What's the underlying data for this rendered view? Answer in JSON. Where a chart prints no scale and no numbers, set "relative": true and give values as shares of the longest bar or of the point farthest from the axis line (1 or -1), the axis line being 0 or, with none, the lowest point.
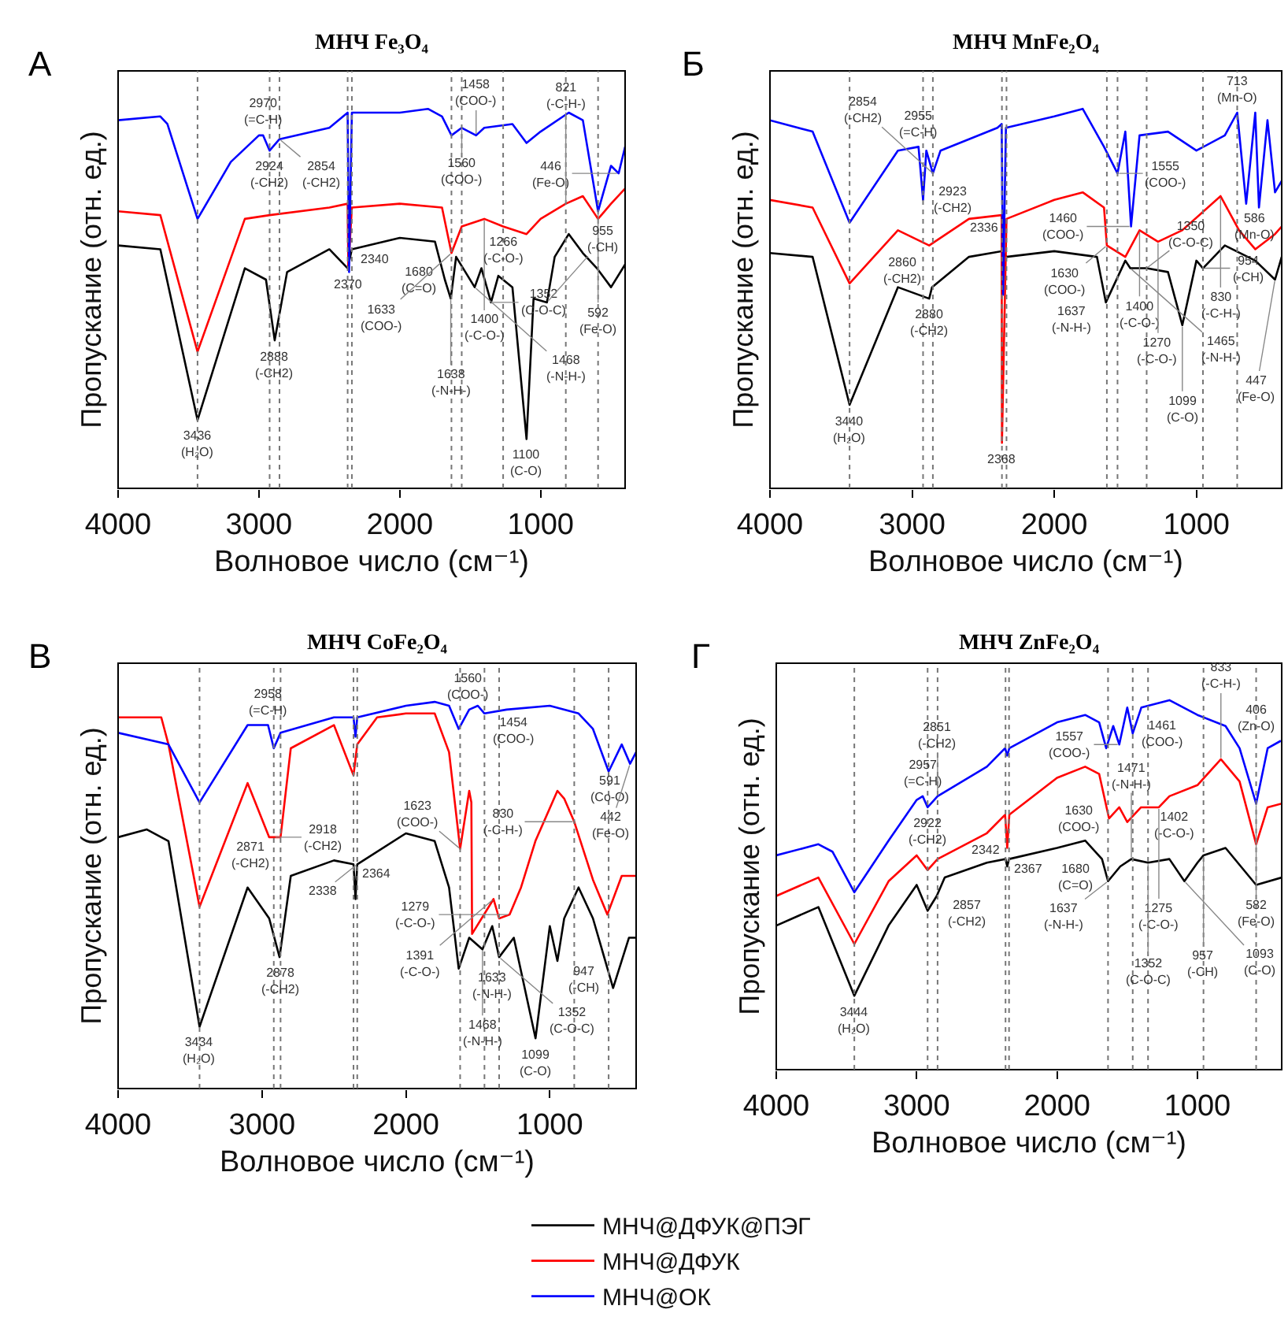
{
  "chart_data": [
    {
      "type": "line",
      "title": "МНЧ Fe₃O₄",
      "xlabel": "Волновое число (см⁻¹)",
      "ylabel": "Пропускание (отн. ед.)",
      "relative": true,
      "xlim": [
        4000,
        400
      ],
      "xticks": [
        4000,
        3000,
        2000,
        1000
      ],
      "tick_labels": "x",
      "grid": false,
      "legend": false,
      "series": [
        {
          "color": "#000000",
          "x": [
            4000,
            3700,
            3436,
            3100,
            2950,
            2888,
            2800,
            2500,
            2370,
            2340,
            2000,
            1750,
            1680,
            1638,
            1600,
            1468,
            1420,
            1352,
            1300,
            1200,
            1100,
            1050,
            955,
            900,
            800,
            700,
            600,
            500,
            400
          ],
          "values": [
            0.64,
            0.63,
            0.18,
            0.58,
            0.55,
            0.39,
            0.57,
            0.63,
            0.58,
            0.63,
            0.66,
            0.65,
            0.55,
            0.5,
            0.61,
            0.53,
            0.58,
            0.49,
            0.56,
            0.53,
            0.13,
            0.5,
            0.49,
            0.61,
            0.67,
            0.62,
            0.58,
            0.53,
            0.59
          ]
        },
        {
          "color": "#ff0000",
          "x": [
            4000,
            3700,
            3436,
            3100,
            2924,
            2500,
            2370,
            2365,
            2340,
            2000,
            1700,
            1633,
            1560,
            1400,
            1266,
            1100,
            1000,
            821,
            700,
            592,
            500,
            400
          ],
          "values": [
            0.73,
            0.72,
            0.36,
            0.71,
            0.72,
            0.74,
            0.75,
            0.58,
            0.74,
            0.75,
            0.74,
            0.62,
            0.69,
            0.71,
            0.69,
            0.67,
            0.71,
            0.75,
            0.77,
            0.71,
            0.75,
            0.79
          ]
        },
        {
          "color": "#0000ff",
          "x": [
            4000,
            3700,
            3650,
            3436,
            3200,
            3000,
            2970,
            2924,
            2854,
            2500,
            2370,
            2360,
            2340,
            2000,
            1800,
            1700,
            1633,
            1560,
            1458,
            1400,
            1200,
            1100,
            1000,
            800,
            700,
            592,
            500,
            446,
            400
          ],
          "values": [
            0.97,
            0.98,
            0.96,
            0.71,
            0.86,
            0.93,
            0.93,
            0.89,
            0.92,
            0.95,
            0.99,
            0.57,
            0.99,
            0.99,
            1.0,
            0.98,
            0.93,
            0.95,
            0.93,
            0.95,
            0.96,
            0.91,
            0.94,
            0.99,
            0.97,
            0.73,
            0.85,
            0.83,
            0.9
          ]
        }
      ],
      "ref_lines": [
        {
          "axis": "x",
          "value": 3436,
          "color": "#777777",
          "line_style": "dotted"
        },
        {
          "axis": "x",
          "value": 2924,
          "color": "#777777",
          "line_style": "dotted"
        },
        {
          "axis": "x",
          "value": 2854,
          "color": "#777777",
          "line_style": "dotted"
        },
        {
          "axis": "x",
          "value": 2370,
          "color": "#777777",
          "line_style": "dotted"
        },
        {
          "axis": "x",
          "value": 2340,
          "color": "#777777",
          "line_style": "dotted"
        },
        {
          "axis": "x",
          "value": 1633,
          "color": "#777777",
          "line_style": "dotted"
        },
        {
          "axis": "x",
          "value": 1560,
          "color": "#777777",
          "line_style": "dotted"
        },
        {
          "axis": "x",
          "value": 1266,
          "color": "#777777",
          "line_style": "dotted"
        },
        {
          "axis": "x",
          "value": 821,
          "color": "#777777",
          "line_style": "dotted"
        },
        {
          "axis": "x",
          "value": 592,
          "color": "#777777",
          "line_style": "dotted"
        }
      ],
      "annotations": [
        "А",
        {
          "text": "3436\n(H₂O)",
          "x": 3436,
          "y": 0.18
        },
        {
          "text": "1100\n(C-O)",
          "x": 1100,
          "y": 0.13
        },
        {
          "text": "2888\n(-CH2)",
          "x": 2888,
          "y": 0.39
        },
        {
          "text": "2970\n(=C-H)",
          "x": 2970,
          "y": 0.93
        },
        {
          "text": "2924\n(-CH2)",
          "x": 2924,
          "y": 0.89
        },
        {
          "text": "2854\n(-CH2)",
          "x": 2854,
          "y": 0.92
        },
        {
          "text": "2370",
          "x": 2370,
          "y": 0.58
        },
        {
          "text": "2340",
          "x": 2340,
          "y": 0.63
        },
        {
          "text": "1560\n(COO-)",
          "x": 1560,
          "y": 0.95
        },
        {
          "text": "1458\n(COO-)",
          "x": 1458,
          "y": 0.93
        },
        {
          "text": "446\n(Fe-O)",
          "x": 446,
          "y": 0.83
        },
        {
          "text": "592\n(Fe-O)",
          "x": 592,
          "y": 0.73
        },
        {
          "text": "821\n(-C-H-)",
          "x": 821,
          "y": 0.75
        },
        {
          "text": "1400\n(-C-O-)",
          "x": 1400,
          "y": 0.71
        },
        {
          "text": "1266\n(-C-O-)",
          "x": 1266,
          "y": 0.69
        },
        {
          "text": "1680\n(C=O)",
          "x": 1680,
          "y": 0.55
        },
        {
          "text": "1633\n(COO-)",
          "x": 1633,
          "y": 0.62
        },
        {
          "text": "1638\n(-N-H-)",
          "x": 1638,
          "y": 0.5
        },
        {
          "text": "1468\n(-N-H-)",
          "x": 1468,
          "y": 0.53
        },
        {
          "text": "1352\n(C-O-C)",
          "x": 1352,
          "y": 0.49
        },
        {
          "text": "955\n(-CH)",
          "x": 955,
          "y": 0.49
        }
      ]
    },
    {
      "type": "line",
      "title": "МНЧ MnFe₂O₄",
      "xlabel": "Волновое число (см⁻¹)",
      "ylabel": "Пропускание (отн. ед.)",
      "relative": true,
      "xlim": [
        4000,
        400
      ],
      "xticks": [
        4000,
        3000,
        2000,
        1000
      ],
      "tick_labels": "x",
      "grid": false,
      "legend": false,
      "series": [
        {
          "color": "#000000",
          "x": [
            4000,
            3700,
            3440,
            3100,
            2880,
            2860,
            2600,
            2368,
            2336,
            2000,
            1700,
            1637,
            1500,
            1465,
            1350,
            1200,
            1099,
            1000,
            954,
            800,
            586,
            447,
            400
          ],
          "values": [
            0.62,
            0.61,
            0.22,
            0.53,
            0.5,
            0.53,
            0.61,
            0.625,
            0.61,
            0.625,
            0.61,
            0.49,
            0.6,
            0.58,
            0.58,
            0.57,
            0.43,
            0.6,
            0.58,
            0.64,
            0.6,
            0.55,
            0.61
          ]
        },
        {
          "color": "#ff0000",
          "x": [
            4000,
            3700,
            3440,
            3100,
            2880,
            2600,
            2370,
            2368,
            2336,
            2000,
            1800,
            1650,
            1630,
            1500,
            1400,
            1270,
            1100,
            830,
            700,
            586,
            447,
            400
          ],
          "values": [
            0.76,
            0.74,
            0.54,
            0.68,
            0.64,
            0.71,
            0.72,
            0.12,
            0.71,
            0.76,
            0.78,
            0.74,
            0.64,
            0.61,
            0.68,
            0.65,
            0.68,
            0.77,
            0.68,
            0.63,
            0.67,
            0.69
          ]
        },
        {
          "color": "#0000ff",
          "x": [
            4000,
            3700,
            3440,
            3100,
            2955,
            2923,
            2900,
            2854,
            2800,
            2400,
            2370,
            2360,
            2340,
            2000,
            1800,
            1650,
            1555,
            1500,
            1460,
            1400,
            1200,
            1000,
            800,
            713,
            650,
            586,
            560,
            500,
            447,
            400
          ],
          "values": [
            0.97,
            0.94,
            0.7,
            0.89,
            0.9,
            0.76,
            0.89,
            0.83,
            0.89,
            0.95,
            0.96,
            0.51,
            0.95,
            0.98,
            1.0,
            0.9,
            0.83,
            0.94,
            0.69,
            0.93,
            0.94,
            0.89,
            0.93,
            0.99,
            0.75,
            0.99,
            0.74,
            0.97,
            0.78,
            0.81
          ]
        }
      ],
      "ref_lines": [
        {
          "axis": "x",
          "value": 3440,
          "color": "#777777",
          "line_style": "dotted"
        },
        {
          "axis": "x",
          "value": 2923,
          "color": "#777777",
          "line_style": "dotted"
        },
        {
          "axis": "x",
          "value": 2854,
          "color": "#777777",
          "line_style": "dotted"
        },
        {
          "axis": "x",
          "value": 2368,
          "color": "#777777",
          "line_style": "dotted"
        },
        {
          "axis": "x",
          "value": 2336,
          "color": "#777777",
          "line_style": "dotted"
        },
        {
          "axis": "x",
          "value": 1630,
          "color": "#777777",
          "line_style": "dotted"
        },
        {
          "axis": "x",
          "value": 1555,
          "color": "#777777",
          "line_style": "dotted"
        },
        {
          "axis": "x",
          "value": 1350,
          "color": "#777777",
          "line_style": "dotted"
        },
        {
          "axis": "x",
          "value": 954,
          "color": "#777777",
          "line_style": "dotted"
        },
        {
          "axis": "x",
          "value": 713,
          "color": "#777777",
          "line_style": "dotted"
        }
      ],
      "annotations": [
        "Б",
        {
          "text": "3440\n(H₂O)",
          "x": 3440,
          "y": 0.22
        },
        {
          "text": "2368",
          "x": 2368,
          "y": 0.12
        },
        {
          "text": "2955\n(=C-H)",
          "x": 2955,
          "y": 0.9
        },
        {
          "text": "2923\n(-CH2)",
          "x": 2923,
          "y": 0.76
        },
        {
          "text": "2854\n(-CH2)",
          "x": 2854,
          "y": 0.83
        },
        {
          "text": "1555\n(COO-)",
          "x": 1555,
          "y": 0.83
        },
        {
          "text": "1460\n(COO-)",
          "x": 1460,
          "y": 0.69
        },
        {
          "text": "713\n(Mn-O)",
          "x": 713,
          "y": 0.99
        },
        {
          "text": "830\n(-C-H-)",
          "x": 830,
          "y": 0.77
        },
        {
          "text": "1400\n(-C-O-)",
          "x": 1400,
          "y": 0.68
        },
        {
          "text": "1270\n(-C-O-)",
          "x": 1270,
          "y": 0.65
        },
        {
          "text": "2880\n(-CH2)",
          "x": 2880,
          "y": 0.5
        },
        {
          "text": "2860\n(-CH2)",
          "x": 2860,
          "y": 0.53
        },
        {
          "text": "2336",
          "x": 2336,
          "y": 0.71
        },
        {
          "text": "1630\n(COO-)",
          "x": 1630,
          "y": 0.64
        },
        {
          "text": "1637\n(-N-H-)",
          "x": 1637,
          "y": 0.49
        },
        {
          "text": "1465\n(-N-H-)",
          "x": 1465,
          "y": 0.58
        },
        {
          "text": "1350\n(C-O-C)",
          "x": 1350,
          "y": 0.58
        },
        {
          "text": "1099\n(C-O)",
          "x": 1099,
          "y": 0.43
        },
        {
          "text": "954\n(-CH)",
          "x": 954,
          "y": 0.58
        },
        {
          "text": "447\n(Fe-O)",
          "x": 447,
          "y": 0.55
        },
        {
          "text": "586\n(Mn-O)",
          "x": 586,
          "y": 0.63
        }
      ]
    },
    {
      "type": "line",
      "title": "МНЧ CoFe₂O₄",
      "xlabel": "Волновое число (см⁻¹)",
      "ylabel": "Пропускание (отн. ед.)",
      "relative": true,
      "xlim": [
        4000,
        400
      ],
      "xticks": [
        4000,
        3000,
        2000,
        1000
      ],
      "tick_labels": "x",
      "grid": false,
      "legend": false,
      "series": [
        {
          "color": "#000000",
          "x": [
            4000,
            3800,
            3650,
            3434,
            3100,
            2950,
            2878,
            2800,
            2500,
            2364,
            2350,
            2338,
            2000,
            1800,
            1700,
            1633,
            1560,
            1468,
            1400,
            1352,
            1250,
            1099,
            1000,
            947,
            900,
            800,
            700,
            560,
            450,
            400
          ],
          "values": [
            0.65,
            0.67,
            0.64,
            0.16,
            0.52,
            0.44,
            0.34,
            0.55,
            0.59,
            0.58,
            0.49,
            0.58,
            0.66,
            0.64,
            0.52,
            0.31,
            0.39,
            0.36,
            0.42,
            0.34,
            0.39,
            0.13,
            0.42,
            0.33,
            0.44,
            0.52,
            0.44,
            0.26,
            0.39,
            0.39
          ]
        },
        {
          "color": "#ff0000",
          "x": [
            4000,
            3700,
            3650,
            3434,
            3100,
            2950,
            2918,
            2871,
            2800,
            2500,
            2364,
            2338,
            2200,
            2000,
            1800,
            1700,
            1623,
            1560,
            1545,
            1540,
            1391,
            1352,
            1279,
            1200,
            1100,
            947,
            900,
            830,
            700,
            600,
            500,
            400
          ],
          "values": [
            0.96,
            0.96,
            0.89,
            0.47,
            0.79,
            0.65,
            0.65,
            0.65,
            0.88,
            0.94,
            0.81,
            0.89,
            0.96,
            0.97,
            0.97,
            0.87,
            0.62,
            0.77,
            0.74,
            0.4,
            0.49,
            0.44,
            0.45,
            0.52,
            0.64,
            0.77,
            0.75,
            0.69,
            0.54,
            0.45,
            0.55,
            0.55
          ]
        },
        {
          "color": "#0000ff",
          "x": [
            4000,
            3650,
            3434,
            3100,
            2958,
            2918,
            2871,
            2500,
            2364,
            2350,
            2338,
            2000,
            1800,
            1700,
            1633,
            1560,
            1500,
            1454,
            1300,
            1000,
            800,
            700,
            591,
            500,
            442,
            400
          ],
          "values": [
            0.92,
            0.89,
            0.74,
            0.94,
            0.94,
            0.88,
            0.92,
            0.96,
            0.96,
            0.91,
            0.96,
            0.99,
            1.0,
            0.99,
            0.93,
            0.98,
            0.99,
            0.97,
            0.98,
            0.99,
            0.97,
            0.93,
            0.82,
            0.89,
            0.84,
            0.87
          ]
        }
      ],
      "ref_lines": [
        {
          "axis": "x",
          "value": 3434,
          "color": "#777777",
          "line_style": "dotted"
        },
        {
          "axis": "x",
          "value": 2918,
          "color": "#777777",
          "line_style": "dotted"
        },
        {
          "axis": "x",
          "value": 2871,
          "color": "#777777",
          "line_style": "dotted"
        },
        {
          "axis": "x",
          "value": 2364,
          "color": "#777777",
          "line_style": "dotted"
        },
        {
          "axis": "x",
          "value": 2338,
          "color": "#777777",
          "line_style": "dotted"
        },
        {
          "axis": "x",
          "value": 1623,
          "color": "#777777",
          "line_style": "dotted"
        },
        {
          "axis": "x",
          "value": 1454,
          "color": "#777777",
          "line_style": "dotted"
        },
        {
          "axis": "x",
          "value": 1352,
          "color": "#777777",
          "line_style": "dotted"
        },
        {
          "axis": "x",
          "value": 830,
          "color": "#777777",
          "line_style": "dotted"
        },
        {
          "axis": "x",
          "value": 591,
          "color": "#777777",
          "line_style": "dotted"
        }
      ],
      "annotations": [
        "В",
        {
          "text": "3434\n(H₂O)",
          "x": 3434,
          "y": 0.16
        },
        {
          "text": "1099\n(C-O)",
          "x": 1099,
          "y": 0.13
        },
        {
          "text": "2878\n(-CH2)",
          "x": 2878,
          "y": 0.34
        },
        {
          "text": "2958\n(=C-H)",
          "x": 2958,
          "y": 0.94
        },
        {
          "text": "2918\n(-CH2)",
          "x": 2918,
          "y": 0.65
        },
        {
          "text": "2871\n(-CH2)",
          "x": 2871,
          "y": 0.65
        },
        {
          "text": "2364",
          "x": 2364,
          "y": 0.58
        },
        {
          "text": "2338",
          "x": 2338,
          "y": 0.58
        },
        {
          "text": "1454\n(COO-)",
          "x": 1454,
          "y": 0.97
        },
        {
          "text": "1560\n(COO-)",
          "x": 1560,
          "y": 0.98
        },
        {
          "text": "591\n(Co-O)",
          "x": 591,
          "y": 0.82
        },
        {
          "text": "442\n(Fe-O)",
          "x": 442,
          "y": 0.84
        },
        {
          "text": "830\n(-C-H-)",
          "x": 830,
          "y": 0.69
        },
        {
          "text": "1391\n(-C-O-)",
          "x": 1391,
          "y": 0.49
        },
        {
          "text": "1279\n(-C-O-)",
          "x": 1279,
          "y": 0.45
        },
        {
          "text": "1623\n(COO-)",
          "x": 1623,
          "y": 0.62
        },
        {
          "text": "1633\n(-N-H-)",
          "x": 1633,
          "y": 0.31
        },
        {
          "text": "1468\n(-N-H-)",
          "x": 1468,
          "y": 0.36
        },
        {
          "text": "1352\n(C-O-C)",
          "x": 1352,
          "y": 0.34
        },
        {
          "text": "947\n(-CH)",
          "x": 947,
          "y": 0.33
        }
      ]
    },
    {
      "type": "line",
      "title": "МНЧ ZnFe₂O₄",
      "xlabel": "Волновое число (см⁻¹)",
      "ylabel": "Пропускание (отн. ед.)",
      "relative": true,
      "xlim": [
        4000,
        400
      ],
      "xticks": [
        4000,
        3000,
        2000,
        1000
      ],
      "tick_labels": "x",
      "grid": false,
      "legend": "bottom",
      "series": [
        {
          "name": "МНЧ@ДФУК@ПЭГ",
          "color": "#000000",
          "x": [
            4000,
            3700,
            3444,
            3200,
            3000,
            2922,
            2857,
            2800,
            2500,
            2367,
            2355,
            2342,
            2000,
            1800,
            1680,
            1637,
            1550,
            1471,
            1352,
            1200,
            1093,
            1000,
            957,
            800,
            582,
            400
          ],
          "values": [
            0.39,
            0.44,
            0.2,
            0.39,
            0.5,
            0.43,
            0.47,
            0.52,
            0.56,
            0.57,
            0.55,
            0.57,
            0.6,
            0.62,
            0.57,
            0.51,
            0.55,
            0.57,
            0.56,
            0.57,
            0.51,
            0.56,
            0.58,
            0.6,
            0.5,
            0.52
          ]
        },
        {
          "name": "МНЧ@ДФУК",
          "color": "#ff0000",
          "x": [
            4000,
            3700,
            3444,
            3200,
            3000,
            2922,
            2851,
            2500,
            2370,
            2355,
            2340,
            2000,
            1800,
            1700,
            1630,
            1557,
            1500,
            1402,
            1275,
            1200,
            1000,
            833,
            700,
            582,
            500,
            400
          ],
          "values": [
            0.47,
            0.52,
            0.34,
            0.51,
            0.58,
            0.54,
            0.57,
            0.64,
            0.69,
            0.6,
            0.69,
            0.79,
            0.82,
            0.8,
            0.68,
            0.71,
            0.67,
            0.71,
            0.71,
            0.74,
            0.77,
            0.84,
            0.78,
            0.61,
            0.71,
            0.72
          ]
        },
        {
          "name": "МНЧ@ОК",
          "color": "#0000ff",
          "x": [
            4000,
            3700,
            3600,
            3444,
            3200,
            3000,
            2957,
            2922,
            2851,
            2500,
            2370,
            2355,
            2340,
            2000,
            1800,
            1700,
            1650,
            1600,
            1557,
            1500,
            1461,
            1400,
            1200,
            1000,
            800,
            700,
            582,
            500,
            406
          ],
          "values": [
            0.58,
            0.61,
            0.59,
            0.48,
            0.62,
            0.73,
            0.74,
            0.71,
            0.74,
            0.82,
            0.87,
            0.85,
            0.87,
            0.94,
            0.96,
            0.94,
            0.87,
            0.93,
            0.88,
            0.98,
            0.91,
            0.98,
            1.0,
            0.96,
            0.93,
            0.87,
            0.72,
            0.87,
            0.89
          ]
        }
      ],
      "ref_lines": [
        {
          "axis": "x",
          "value": 3444,
          "color": "#777777",
          "line_style": "dotted"
        },
        {
          "axis": "x",
          "value": 2922,
          "color": "#777777",
          "line_style": "dotted"
        },
        {
          "axis": "x",
          "value": 2851,
          "color": "#777777",
          "line_style": "dotted"
        },
        {
          "axis": "x",
          "value": 2367,
          "color": "#777777",
          "line_style": "dotted"
        },
        {
          "axis": "x",
          "value": 2342,
          "color": "#777777",
          "line_style": "dotted"
        },
        {
          "axis": "x",
          "value": 1637,
          "color": "#777777",
          "line_style": "dotted"
        },
        {
          "axis": "x",
          "value": 1461,
          "color": "#777777",
          "line_style": "dotted"
        },
        {
          "axis": "x",
          "value": 1352,
          "color": "#777777",
          "line_style": "dotted"
        },
        {
          "axis": "x",
          "value": 957,
          "color": "#777777",
          "line_style": "dotted"
        },
        {
          "axis": "x",
          "value": 582,
          "color": "#777777",
          "line_style": "dotted"
        }
      ],
      "annotations": [
        "Г",
        {
          "text": "3444\n(H₂O)",
          "x": 3444,
          "y": 0.2
        },
        {
          "text": "2957\n(=C-H)",
          "x": 2957,
          "y": 0.74
        },
        {
          "text": "2922\n(-CH2)",
          "x": 2922,
          "y": 0.71
        },
        {
          "text": "2851\n(-CH2)",
          "x": 2851,
          "y": 0.74
        },
        {
          "text": "2857\n(-CH2)",
          "x": 2857,
          "y": 0.47
        },
        {
          "text": "2367",
          "x": 2367,
          "y": 0.57
        },
        {
          "text": "2342",
          "x": 2342,
          "y": 0.57
        },
        {
          "text": "1461\n(COO-)",
          "x": 1461,
          "y": 0.91
        },
        {
          "text": "1557\n(COO-)",
          "x": 1557,
          "y": 0.88
        },
        {
          "text": "406\n(Zn-O)",
          "x": 406,
          "y": 0.89
        },
        {
          "text": "582\n(Fe-O)",
          "x": 582,
          "y": 0.72
        },
        {
          "text": "833\n(-C-H-)",
          "x": 833,
          "y": 0.84
        },
        {
          "text": "1402\n(-C-O-)",
          "x": 1402,
          "y": 0.71
        },
        {
          "text": "1275\n(-C-O-)",
          "x": 1275,
          "y": 0.71
        },
        {
          "text": "1630\n(COO-)",
          "x": 1630,
          "y": 0.68
        },
        {
          "text": "1680\n(C=O)",
          "x": 1680,
          "y": 0.57
        },
        {
          "text": "1637\n(-N-H-)",
          "x": 1637,
          "y": 0.51
        },
        {
          "text": "1471\n(-N-H-)",
          "x": 1471,
          "y": 0.57
        },
        {
          "text": "1352\n(C-O-C)",
          "x": 1352,
          "y": 0.56
        },
        {
          "text": "1093\n(C-O)",
          "x": 1093,
          "y": 0.51
        },
        {
          "text": "957\n(-CH)",
          "x": 957,
          "y": 0.58
        }
      ]
    }
  ]
}
